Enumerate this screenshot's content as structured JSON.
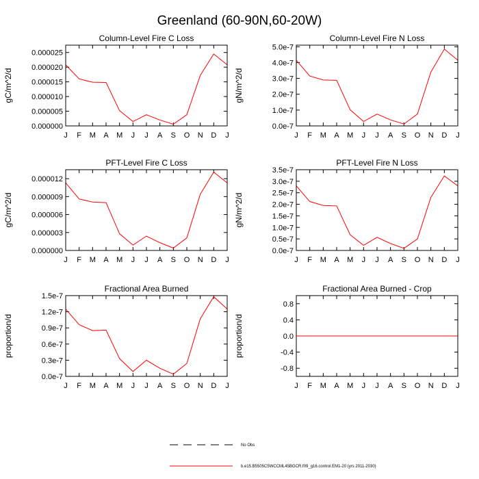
{
  "figure_title": "Greenland (60-90N,60-20W)",
  "months": [
    "J",
    "F",
    "M",
    "A",
    "M",
    "J",
    "J",
    "A",
    "S",
    "O",
    "N",
    "D",
    "J"
  ],
  "legend": {
    "obs_label": "No Obs",
    "model_label": "b.e15.B5505C5WCCML45BGCR.f09_g16.control.EM1-20 (yrs 2011-2030)",
    "model_color": "#ff0000",
    "obs_color": "#000000"
  },
  "chart_data": [
    {
      "type": "line",
      "title": "Column-Level Fire C Loss",
      "ylabel": "gC/m^2/d",
      "ylim": [
        0,
        2.75e-05
      ],
      "yticks": [
        0,
        5e-06,
        1e-05,
        1.5e-05,
        2e-05,
        2.5e-05
      ],
      "ytick_labels": [
        "0.000000",
        "0.000005",
        "0.000010",
        "0.000015",
        "0.000020",
        "0.000025"
      ],
      "series": [
        {
          "name": "model",
          "values": [
            2.08e-05,
            1.6e-05,
            1.49e-05,
            1.48e-05,
            5.2e-06,
            1.5e-06,
            3.8e-06,
            2e-06,
            6e-07,
            3.8e-06,
            1.72e-05,
            2.45e-05,
            2.08e-05
          ]
        }
      ]
    },
    {
      "type": "line",
      "title": "Column-Level Fire N Loss",
      "ylabel": "gN/m^2/d",
      "ylim": [
        0,
        5.1e-07
      ],
      "yticks": [
        0,
        1e-07,
        2e-07,
        3e-07,
        4e-07,
        5e-07
      ],
      "ytick_labels": [
        "0.0e-7",
        "1.0e-7",
        "2.0e-7",
        "3.0e-7",
        "4.0e-7",
        "5.0e-7"
      ],
      "series": [
        {
          "name": "model",
          "values": [
            4.15e-07,
            3.15e-07,
            2.9e-07,
            2.88e-07,
            1.02e-07,
            2.8e-08,
            7.5e-08,
            3.8e-08,
            1.2e-08,
            7.5e-08,
            3.4e-07,
            4.85e-07,
            4.15e-07
          ]
        }
      ]
    },
    {
      "type": "line",
      "title": "PFT-Level Fire C Loss",
      "ylabel": "gC/m^2/d",
      "ylim": [
        0,
        1.35e-05
      ],
      "yticks": [
        0,
        3e-06,
        6e-06,
        9e-06,
        1.2e-05
      ],
      "ytick_labels": [
        "0.000000",
        "0.000003",
        "0.000006",
        "0.000009",
        "0.000012"
      ],
      "series": [
        {
          "name": "model",
          "values": [
            1.13e-05,
            8.6e-06,
            8.1e-06,
            8e-06,
            2.8e-06,
            9e-07,
            2.4e-06,
            1.3e-06,
            4e-07,
            2.1e-06,
            9.4e-06,
            1.31e-05,
            1.13e-05
          ]
        }
      ]
    },
    {
      "type": "line",
      "title": "PFT-Level Fire N Loss",
      "ylabel": "gN/m^2/d",
      "ylim": [
        0,
        3.5e-07
      ],
      "yticks": [
        0,
        5e-08,
        1e-07,
        1.5e-07,
        2e-07,
        2.5e-07,
        3e-07,
        3.5e-07
      ],
      "ytick_labels": [
        "0.0e-7",
        "0.5e-7",
        "1.0e-7",
        "1.5e-7",
        "2.0e-7",
        "2.5e-7",
        "3.0e-7",
        "3.5e-7"
      ],
      "series": [
        {
          "name": "model",
          "values": [
            2.8e-07,
            2.12e-07,
            1.95e-07,
            1.93e-07,
            6.8e-08,
            2.2e-08,
            5.7e-08,
            3e-08,
            9e-09,
            5e-08,
            2.3e-07,
            3.23e-07,
            2.8e-07
          ]
        }
      ]
    },
    {
      "type": "line",
      "title": "Fractional Area Burned",
      "ylabel": "proportion/d",
      "ylim": [
        0,
        1.5e-07
      ],
      "yticks": [
        0,
        3e-08,
        6e-08,
        9e-08,
        1.2e-07,
        1.5e-07
      ],
      "ytick_labels": [
        "0.0e-7",
        "0.3e-7",
        "0.6e-7",
        "0.9e-7",
        "1.2e-7",
        "1.5e-7"
      ],
      "series": [
        {
          "name": "model",
          "values": [
            1.25e-07,
            9.6e-08,
            8.5e-08,
            8.6e-08,
            3.3e-08,
            9e-09,
            3e-08,
            1.5e-08,
            4e-09,
            2.4e-08,
            1.07e-07,
            1.48e-07,
            1.25e-07
          ]
        }
      ]
    },
    {
      "type": "line",
      "title": "Fractional Area Burned - Crop",
      "ylabel": "proportion/d",
      "ylim": [
        -1.0,
        1.0
      ],
      "yticks": [
        -0.8,
        -0.4,
        0,
        0.4,
        0.8
      ],
      "ytick_labels": [
        "-0.8",
        "-0.4",
        "0.0",
        "0.4",
        "0.8"
      ],
      "series": [
        {
          "name": "model",
          "values": [
            0,
            0,
            0,
            0,
            0,
            0,
            0,
            0,
            0,
            0,
            0,
            0,
            0
          ]
        }
      ]
    }
  ]
}
